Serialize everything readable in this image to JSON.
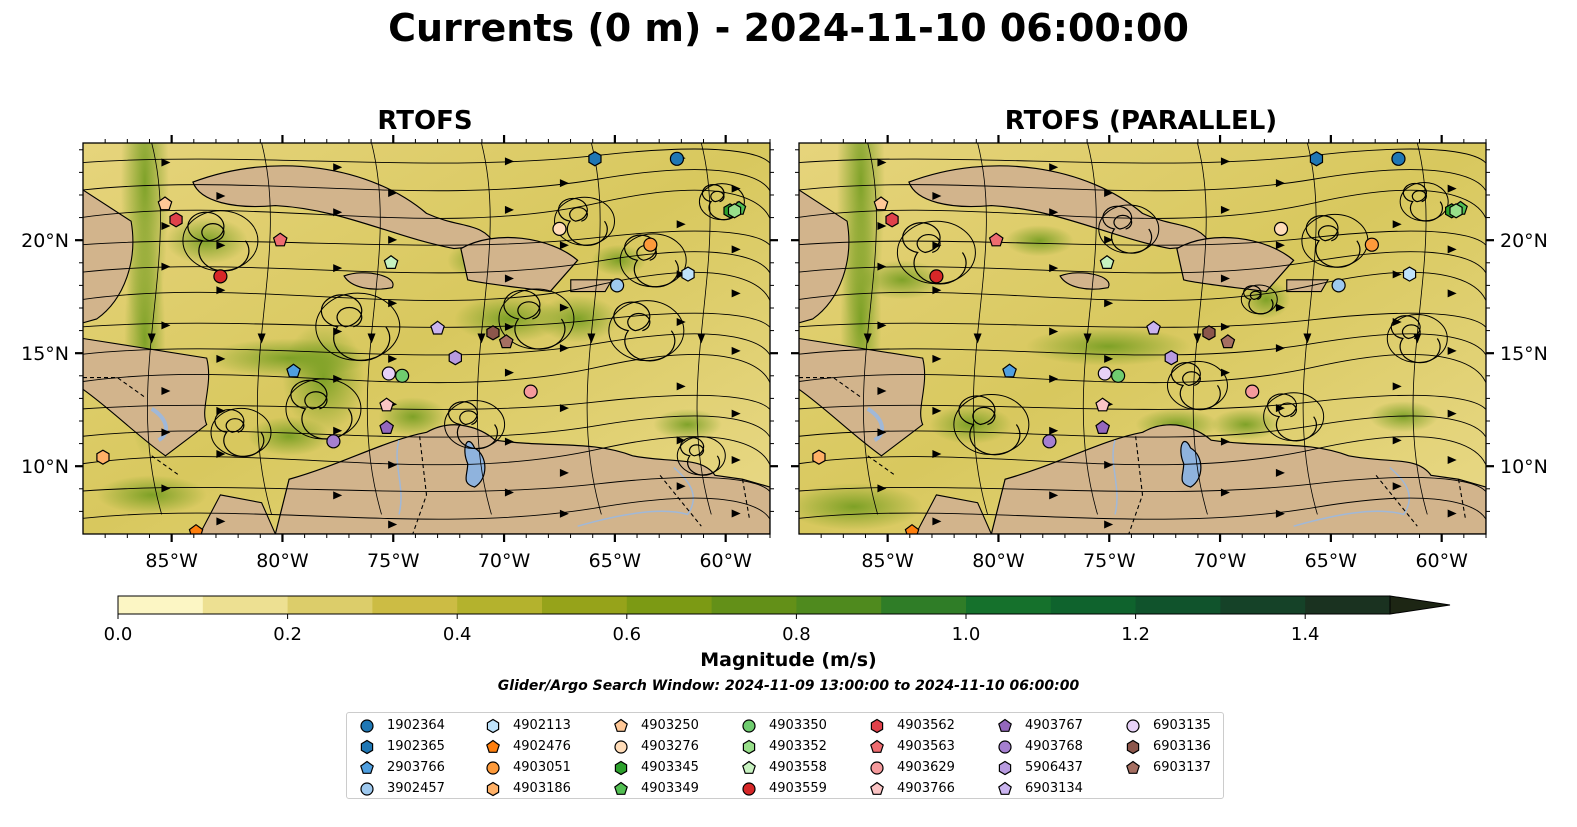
{
  "title": "Currents (0 m) - 2024-11-10 06:00:00",
  "colors": {
    "land": "#d2b48c",
    "lake": "#8fb3dd",
    "river": "#a0b8d8"
  },
  "chart_data": [
    {
      "type": "heatmap",
      "panel": "RTOFS",
      "title": "RTOFS",
      "x_ticks": [
        "85°W",
        "80°W",
        "75°W",
        "70°W",
        "65°W",
        "60°W"
      ],
      "y_ticks": [
        "20°N",
        "15°N",
        "10°N"
      ],
      "xlim": [
        -89,
        -58
      ],
      "ylim": [
        7,
        24.3
      ]
    },
    {
      "type": "heatmap",
      "panel": "RTOFS (PARALLEL)",
      "title": "RTOFS (PARALLEL)",
      "x_ticks": [
        "85°W",
        "80°W",
        "75°W",
        "70°W",
        "65°W",
        "60°W"
      ],
      "y_ticks": [
        "20°N",
        "15°N",
        "10°N"
      ],
      "xlim": [
        -89,
        -58
      ],
      "ylim": [
        7,
        24.3
      ]
    }
  ],
  "colorbar": {
    "title": "Magnitude (m/s)",
    "ticks": [
      "0.0",
      "0.2",
      "0.4",
      "0.6",
      "0.8",
      "1.0",
      "1.2",
      "1.4"
    ],
    "range": [
      0,
      1.5
    ],
    "extend": "max",
    "colors": [
      "#fcf6c4",
      "#ede092",
      "#dccd6a",
      "#ccbc44",
      "#b4b22d",
      "#96a31a",
      "#7c9a14",
      "#639018",
      "#4f8a1e",
      "#2f7d27",
      "#15712c",
      "#0f632d",
      "#10532c",
      "#154228",
      "#1a3220",
      "#1d2614"
    ]
  },
  "search_window": "Glider/Argo Search Window: 2024-11-09 13:00:00 to 2024-11-10 06:00:00",
  "legend": [
    {
      "label": "1902364",
      "shape": "circle",
      "color": "#1f77b4"
    },
    {
      "label": "1902365",
      "shape": "hexagon",
      "color": "#1f77b4"
    },
    {
      "label": "2903766",
      "shape": "pentagon",
      "color": "#4f9fe0"
    },
    {
      "label": "3902457",
      "shape": "circle",
      "color": "#9ec9ef"
    },
    {
      "label": "4902113",
      "shape": "hexagon",
      "color": "#bfe3fb"
    },
    {
      "label": "4902476",
      "shape": "pentagon",
      "color": "#ff7f0e"
    },
    {
      "label": "4903051",
      "shape": "circle",
      "color": "#fd9a3b"
    },
    {
      "label": "4903186",
      "shape": "hexagon",
      "color": "#ffb066"
    },
    {
      "label": "4903250",
      "shape": "pentagon",
      "color": "#ffc897"
    },
    {
      "label": "4903276",
      "shape": "circle",
      "color": "#ffdcb8"
    },
    {
      "label": "4903345",
      "shape": "hexagon",
      "color": "#2ca02c"
    },
    {
      "label": "4903349",
      "shape": "pentagon",
      "color": "#52bf52"
    },
    {
      "label": "4903350",
      "shape": "circle",
      "color": "#6fcc6f"
    },
    {
      "label": "4903352",
      "shape": "hexagon",
      "color": "#98df8a"
    },
    {
      "label": "4903558",
      "shape": "pentagon",
      "color": "#c7f2c0"
    },
    {
      "label": "4903559",
      "shape": "circle",
      "color": "#d62728"
    },
    {
      "label": "4903562",
      "shape": "hexagon",
      "color": "#e0414a"
    },
    {
      "label": "4903563",
      "shape": "pentagon",
      "color": "#ee6c70"
    },
    {
      "label": "4903629",
      "shape": "circle",
      "color": "#f59a9c"
    },
    {
      "label": "4903766",
      "shape": "pentagon",
      "color": "#fbc4c4"
    },
    {
      "label": "4903767",
      "shape": "pentagon",
      "color": "#9467bd"
    },
    {
      "label": "4903768",
      "shape": "circle",
      "color": "#a57fd0"
    },
    {
      "label": "5906437",
      "shape": "hexagon",
      "color": "#b89be0"
    },
    {
      "label": "6903134",
      "shape": "pentagon",
      "color": "#cab4ef"
    },
    {
      "label": "6903135",
      "shape": "circle",
      "color": "#e7d1f7"
    },
    {
      "label": "6903136",
      "shape": "hexagon",
      "color": "#8c564b"
    },
    {
      "label": "6903137",
      "shape": "pentagon",
      "color": "#a66f62"
    }
  ],
  "markers": [
    {
      "id": "1902364",
      "lon": -62.2,
      "lat": 23.6
    },
    {
      "id": "1902365",
      "lon": -65.9,
      "lat": 23.6
    },
    {
      "id": "2903766",
      "lon": -79.5,
      "lat": 14.2
    },
    {
      "id": "3902457",
      "lon": -64.9,
      "lat": 18.0
    },
    {
      "id": "4902113",
      "lon": -61.7,
      "lat": 18.5
    },
    {
      "id": "4902476",
      "lon": -83.9,
      "lat": 7.1
    },
    {
      "id": "4903051",
      "lon": -63.4,
      "lat": 19.8
    },
    {
      "id": "4903186",
      "lon": -88.1,
      "lat": 10.4
    },
    {
      "id": "4903250",
      "lon": -85.3,
      "lat": 21.6
    },
    {
      "id": "4903276",
      "lon": -67.5,
      "lat": 20.5
    },
    {
      "id": "4903345",
      "lon": -59.8,
      "lat": 21.3
    },
    {
      "id": "4903349",
      "lon": -59.4,
      "lat": 21.4
    },
    {
      "id": "4903350",
      "lon": -74.6,
      "lat": 14.0
    },
    {
      "id": "4903352",
      "lon": -59.6,
      "lat": 21.3
    },
    {
      "id": "4903558",
      "lon": -75.1,
      "lat": 19.0
    },
    {
      "id": "4903559",
      "lon": -82.8,
      "lat": 18.4
    },
    {
      "id": "4903562",
      "lon": -84.8,
      "lat": 20.9
    },
    {
      "id": "4903563",
      "lon": -80.1,
      "lat": 20.0
    },
    {
      "id": "4903629",
      "lon": -68.8,
      "lat": 13.3
    },
    {
      "id": "4903766",
      "lon": -75.3,
      "lat": 12.7
    },
    {
      "id": "4903767",
      "lon": -75.3,
      "lat": 11.7
    },
    {
      "id": "4903768",
      "lon": -77.7,
      "lat": 11.1
    },
    {
      "id": "5906437",
      "lon": -72.2,
      "lat": 14.8
    },
    {
      "id": "6903134",
      "lon": -73.0,
      "lat": 16.1
    },
    {
      "id": "6903135",
      "lon": -75.2,
      "lat": 14.1
    },
    {
      "id": "6903136",
      "lon": -70.5,
      "lat": 15.9
    },
    {
      "id": "6903137",
      "lon": -69.9,
      "lat": 15.5
    }
  ]
}
